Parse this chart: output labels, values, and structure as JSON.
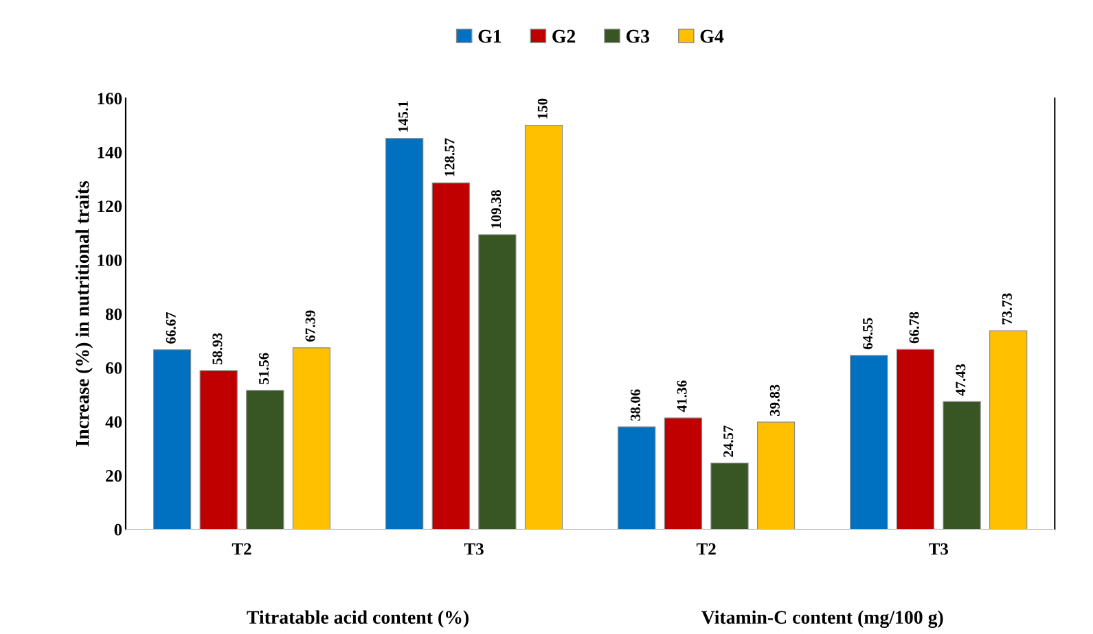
{
  "chart_data": {
    "type": "bar",
    "ylabel": "Increase (%) in nutritional traits",
    "categories": [
      "T2",
      "T3",
      "T2",
      "T3"
    ],
    "series": [
      {
        "name": "G1",
        "color": "#0070c0",
        "values": [
          66.67,
          145.1,
          38.06,
          64.55
        ]
      },
      {
        "name": "G2",
        "color": "#c00000",
        "values": [
          58.93,
          128.57,
          41.36,
          66.78
        ]
      },
      {
        "name": "G3",
        "color": "#375623",
        "values": [
          51.56,
          109.38,
          24.57,
          47.43
        ]
      },
      {
        "name": "G4",
        "color": "#ffc000",
        "values": [
          67.39,
          150,
          39.83,
          73.73
        ]
      }
    ],
    "ylim": [
      0,
      160
    ],
    "yticks": [
      0,
      20,
      40,
      60,
      80,
      100,
      120,
      140,
      160
    ],
    "data_labels": true,
    "legend": "top",
    "grid": false,
    "annotations": [
      "Titratable acid content (%)",
      "Vitamin-C content (mg/100 g)"
    ]
  }
}
